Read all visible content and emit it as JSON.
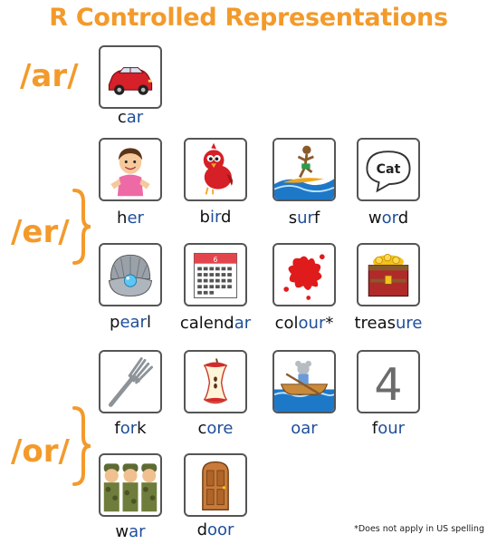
{
  "title": "R Controlled Representations",
  "sounds": {
    "ar": "/ar/",
    "er": "/er/",
    "or": "/or/"
  },
  "colors": {
    "accent": "#f39a2b",
    "highlight": "#1f4e9c"
  },
  "items": [
    {
      "id": "car",
      "pre": "c",
      "hl": "ar",
      "post": "",
      "icon": "car-icon"
    },
    {
      "id": "her",
      "pre": "h",
      "hl": "er",
      "post": "",
      "icon": "girl-icon"
    },
    {
      "id": "bird",
      "pre": "b",
      "hl": "ir",
      "post": "d",
      "icon": "bird-icon"
    },
    {
      "id": "surf",
      "pre": "s",
      "hl": "ur",
      "post": "f",
      "icon": "surfer-icon"
    },
    {
      "id": "word",
      "pre": "w",
      "hl": "or",
      "post": "d",
      "icon": "speech-bubble-icon",
      "bubble_text": "Cat"
    },
    {
      "id": "pearl",
      "pre": "p",
      "hl": "ear",
      "post": "l",
      "icon": "pearl-shell-icon"
    },
    {
      "id": "calendar",
      "pre": "calend",
      "hl": "ar",
      "post": "",
      "icon": "calendar-icon",
      "calendar_text": "6"
    },
    {
      "id": "colour",
      "pre": "col",
      "hl": "our",
      "post": "*",
      "icon": "paint-splat-icon"
    },
    {
      "id": "treasure",
      "pre": "treas",
      "hl": "ure",
      "post": "",
      "icon": "treasure-chest-icon"
    },
    {
      "id": "fork",
      "pre": "f",
      "hl": "or",
      "post": "k",
      "icon": "fork-icon"
    },
    {
      "id": "core",
      "pre": "c",
      "hl": "ore",
      "post": "",
      "icon": "apple-core-icon"
    },
    {
      "id": "oar",
      "pre": "",
      "hl": "oar",
      "post": "",
      "icon": "rowing-boat-icon"
    },
    {
      "id": "four",
      "pre": "f",
      "hl": "our",
      "post": "",
      "icon": "number-four-icon",
      "number_text": "4"
    },
    {
      "id": "war",
      "pre": "w",
      "hl": "ar",
      "post": "",
      "icon": "soldiers-icon"
    },
    {
      "id": "door",
      "pre": "d",
      "hl": "oor",
      "post": "",
      "icon": "door-icon"
    }
  ],
  "footnote": "*Does not apply in US spelling"
}
